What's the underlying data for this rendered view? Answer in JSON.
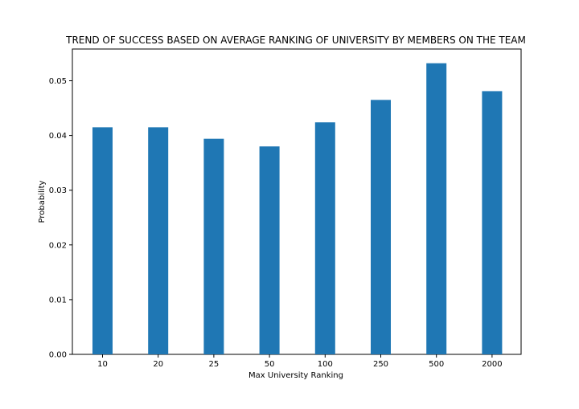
{
  "chart_data": {
    "type": "bar",
    "title": "TREND OF SUCCESS BASED ON AVERAGE RANKING OF UNIVERSITY BY MEMBERS ON THE TEAM",
    "xlabel": "Max University Ranking",
    "ylabel": "Probability",
    "categories": [
      "10",
      "20",
      "25",
      "50",
      "100",
      "250",
      "500",
      "2000"
    ],
    "values": [
      0.0415,
      0.0415,
      0.0394,
      0.038,
      0.0424,
      0.0465,
      0.0532,
      0.0481
    ],
    "ylim": [
      0,
      0.0558
    ],
    "yticks": [
      0.0,
      0.01,
      0.02,
      0.03,
      0.04,
      0.05
    ],
    "ytick_labels": [
      "0.00",
      "0.01",
      "0.02",
      "0.03",
      "0.04",
      "0.05"
    ],
    "bar_color": "#1f77b4",
    "grid": false,
    "legend": "none"
  }
}
